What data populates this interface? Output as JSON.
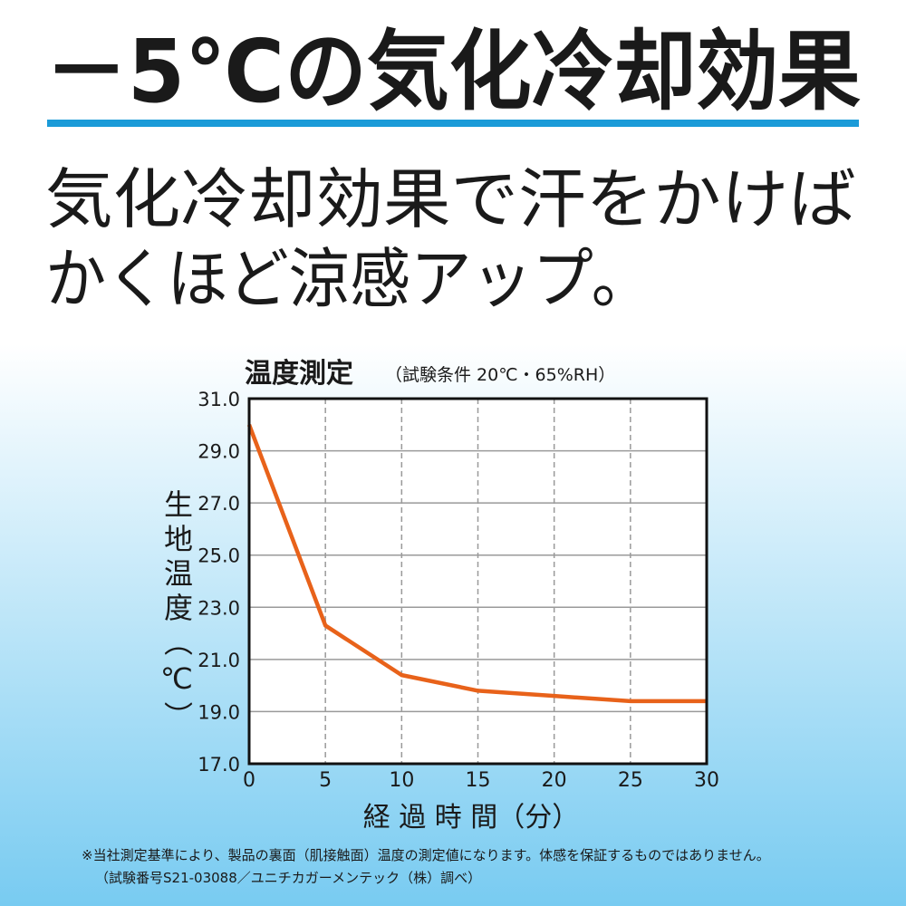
{
  "header": {
    "title": "－5℃の気化冷却効果",
    "subtitle": [
      "気化冷却効果で汗をかけば",
      "かくほど涼感アップ。"
    ]
  },
  "chart_data": {
    "type": "line",
    "title": "温度測定",
    "subtitle": "（試験条件 20℃・65%RH）",
    "x_label": "経 過 時 間（分）",
    "y_label": "生地温度（℃）",
    "x": [
      0,
      5,
      10,
      15,
      20,
      25,
      30
    ],
    "values": [
      30.0,
      22.3,
      20.4,
      19.8,
      19.6,
      19.4,
      19.4
    ],
    "color": "#e8621a",
    "xlim": [
      0,
      30
    ],
    "xticks": [
      0,
      5,
      10,
      15,
      20,
      25,
      30
    ],
    "ylim": [
      17,
      31
    ],
    "yticks": [
      {
        "value": 17,
        "label": "17.0"
      },
      {
        "value": 19,
        "label": "19.0"
      },
      {
        "value": 21,
        "label": "21.0"
      },
      {
        "value": 23,
        "label": "23.0"
      },
      {
        "value": 25,
        "label": "25.0"
      },
      {
        "value": 27,
        "label": "27.0"
      },
      {
        "value": 29,
        "label": "29.0"
      },
      {
        "value": 31,
        "label": "31.0"
      }
    ],
    "grid": true
  },
  "notes": [
    "※当社測定基準により、製品の裏面（肌接触面）温度の測定値になります。体感を保証するものではありません。",
    "（試験番号S21-03088／ユニチカガーメンテック（株）調べ）"
  ]
}
